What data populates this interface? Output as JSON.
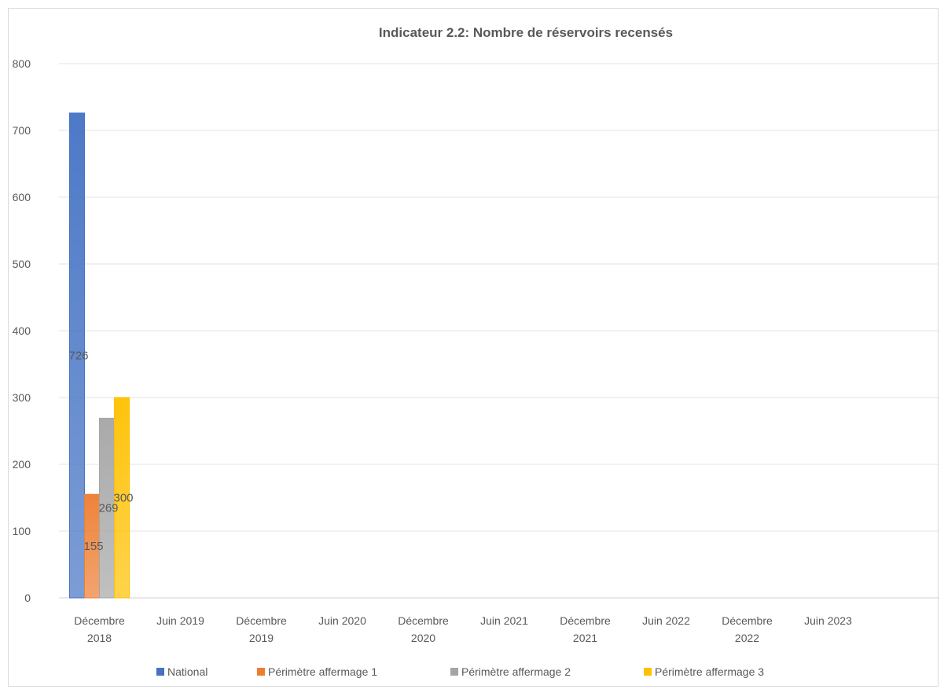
{
  "chart_data": {
    "type": "bar",
    "title": "Indicateur 2.2: Nombre de réservoirs recensés",
    "xlabel": "",
    "ylabel": "",
    "ylim": [
      0,
      800
    ],
    "yticks": [
      0,
      100,
      200,
      300,
      400,
      500,
      600,
      700,
      800
    ],
    "grid": true,
    "legend_position": "bottom",
    "categories": [
      [
        "Décembre",
        "2018"
      ],
      [
        "Juin 2019"
      ],
      [
        "Décembre",
        "2019"
      ],
      [
        "Juin 2020"
      ],
      [
        "Décembre",
        "2020"
      ],
      [
        "Juin 2021"
      ],
      [
        "Décembre",
        "2021"
      ],
      [
        "Juin 2022"
      ],
      [
        "Décembre",
        "2022"
      ],
      [
        "Juin 2023"
      ]
    ],
    "series": [
      {
        "name": "National",
        "color": "#4472c4",
        "values": [
          726,
          null,
          null,
          null,
          null,
          null,
          null,
          null,
          null,
          null
        ]
      },
      {
        "name": "Périmètre affermage 1",
        "color": "#ed7d31",
        "values": [
          155,
          null,
          null,
          null,
          null,
          null,
          null,
          null,
          null,
          null
        ]
      },
      {
        "name": "Périmètre affermage 2",
        "color": "#a5a5a5",
        "values": [
          269,
          null,
          null,
          null,
          null,
          null,
          null,
          null,
          null,
          null
        ]
      },
      {
        "name": "Périmètre affermage 3",
        "color": "#ffc000",
        "values": [
          300,
          null,
          null,
          null,
          null,
          null,
          null,
          null,
          null,
          null
        ]
      }
    ],
    "data_labels": true
  }
}
